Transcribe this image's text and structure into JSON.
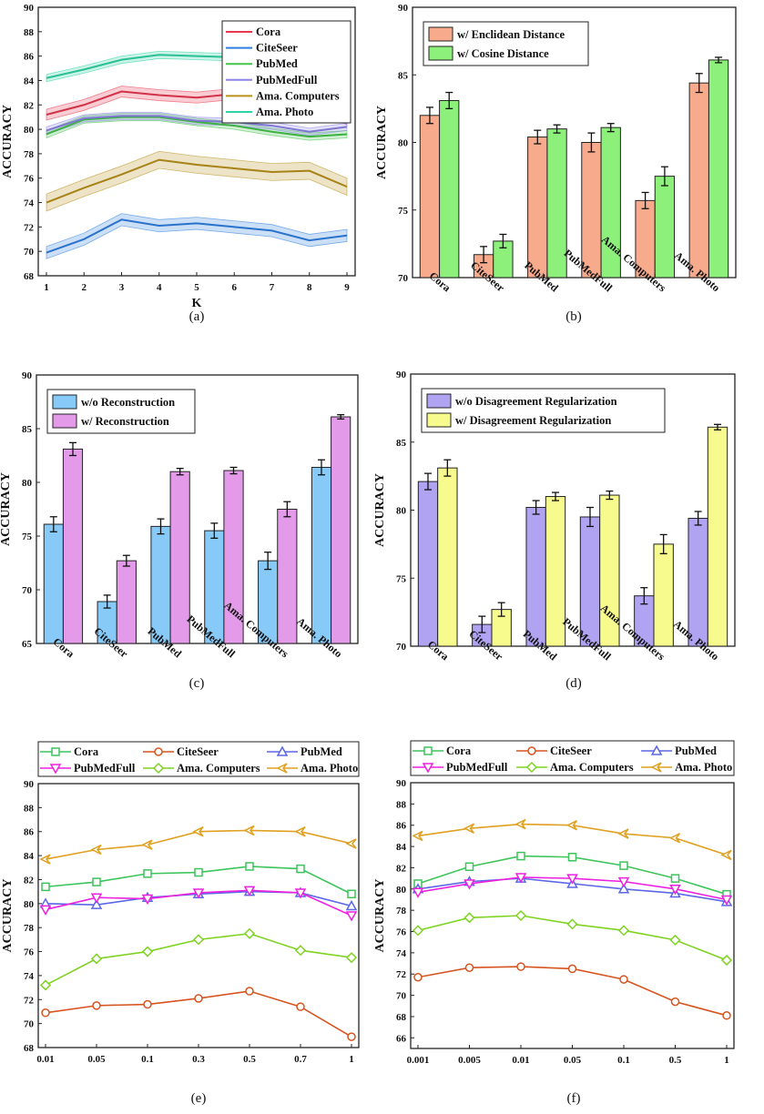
{
  "chart_data": [
    {
      "id": "a",
      "caption": "(a)",
      "type": "line",
      "xlabel": "K",
      "ylabel": "ACCURACY",
      "x": [
        1,
        2,
        3,
        4,
        5,
        6,
        7,
        8,
        9
      ],
      "xticks": [
        "1",
        "2",
        "3",
        "4",
        "5",
        "6",
        "7",
        "8",
        "9"
      ],
      "ylim": [
        68,
        90
      ],
      "yticks": [
        "68",
        "70",
        "72",
        "74",
        "76",
        "78",
        "80",
        "82",
        "84",
        "86",
        "88",
        "90"
      ],
      "legend_position": "top-right",
      "series": [
        {
          "name": "Cora",
          "color": "#e8384f",
          "values": [
            81.2,
            82.0,
            83.1,
            82.8,
            82.6,
            82.9,
            82.8,
            82.4,
            80.8
          ],
          "band": 0.45
        },
        {
          "name": "CiteSeer",
          "color": "#2f7fe0",
          "values": [
            69.9,
            71.0,
            72.6,
            72.1,
            72.3,
            72.0,
            71.7,
            70.9,
            71.3
          ],
          "band": 0.5
        },
        {
          "name": "PubMed",
          "color": "#44c34a",
          "values": [
            79.6,
            80.8,
            81.0,
            81.0,
            80.6,
            80.3,
            79.8,
            79.4,
            79.6
          ],
          "band": 0.3
        },
        {
          "name": "PubMedFull",
          "color": "#8c83e8",
          "values": [
            79.9,
            80.9,
            81.1,
            81.1,
            80.7,
            80.6,
            80.3,
            79.8,
            80.2
          ],
          "band": 0.3
        },
        {
          "name": "Ama. Computers",
          "color": "#b8901a",
          "values": [
            74.0,
            75.2,
            76.3,
            77.5,
            77.1,
            76.8,
            76.5,
            76.6,
            75.3
          ],
          "band": 0.7
        },
        {
          "name": "Ama. Photo",
          "color": "#2fd4a4",
          "values": [
            84.2,
            84.9,
            85.7,
            86.1,
            86.0,
            85.9,
            85.8,
            85.6,
            85.5
          ],
          "band": 0.3
        }
      ]
    },
    {
      "id": "b",
      "caption": "(b)",
      "type": "bar",
      "ylabel": "ACCURACY",
      "categories": [
        "Cora",
        "CiteSeer",
        "PubMed",
        "PubMedFull",
        "Ama. Computers",
        "Ama. Photo"
      ],
      "ylim": [
        70,
        90
      ],
      "yticks": [
        "70",
        "75",
        "80",
        "85",
        "90"
      ],
      "legend_position": "top-left",
      "series": [
        {
          "name": "w/ Enclidean Distance",
          "color": "#f7aa8c",
          "values": [
            82.0,
            71.7,
            80.4,
            80.0,
            75.7,
            84.4
          ],
          "errors": [
            0.6,
            0.6,
            0.5,
            0.7,
            0.6,
            0.7
          ]
        },
        {
          "name": "w/ Cosine Distance",
          "color": "#8cf07a",
          "values": [
            83.1,
            72.7,
            81.0,
            81.1,
            77.5,
            86.1
          ],
          "errors": [
            0.6,
            0.5,
            0.3,
            0.3,
            0.7,
            0.2
          ]
        }
      ]
    },
    {
      "id": "c",
      "caption": "(c)",
      "type": "bar",
      "ylabel": "ACCURACY",
      "categories": [
        "Cora",
        "CiteSeer",
        "PubMed",
        "PubMedFull",
        "Ama. Computers",
        "Ama. Photo"
      ],
      "ylim": [
        65,
        90
      ],
      "yticks": [
        "65",
        "70",
        "75",
        "80",
        "85",
        "90"
      ],
      "legend_position": "top-left",
      "series": [
        {
          "name": "w/o Reconstruction",
          "color": "#87c9f7",
          "values": [
            76.1,
            68.9,
            75.9,
            75.5,
            72.7,
            81.4
          ],
          "errors": [
            0.7,
            0.6,
            0.7,
            0.7,
            0.8,
            0.7
          ]
        },
        {
          "name": "w/ Reconstruction",
          "color": "#e29ae9",
          "values": [
            83.1,
            72.7,
            81.0,
            81.1,
            77.5,
            86.1
          ],
          "errors": [
            0.6,
            0.5,
            0.3,
            0.3,
            0.7,
            0.2
          ]
        }
      ]
    },
    {
      "id": "d",
      "caption": "(d)",
      "type": "bar",
      "ylabel": "ACCURACY",
      "categories": [
        "Cora",
        "CiteSeer",
        "PubMed",
        "PubMedFull",
        "Ama. Computers",
        "Ama. Photo"
      ],
      "ylim": [
        70,
        90
      ],
      "yticks": [
        "70",
        "75",
        "80",
        "85",
        "90"
      ],
      "legend_position": "top-left",
      "series": [
        {
          "name": "w/o Disagreement Regularization",
          "color": "#b0a3f2",
          "values": [
            82.1,
            71.6,
            80.2,
            79.5,
            73.7,
            79.4
          ],
          "errors": [
            0.6,
            0.6,
            0.5,
            0.7,
            0.6,
            0.5
          ]
        },
        {
          "name": "w/ Disagreement Regularization",
          "color": "#f7fa8c",
          "values": [
            83.1,
            72.7,
            81.0,
            81.1,
            77.5,
            86.1
          ],
          "errors": [
            0.6,
            0.5,
            0.3,
            0.3,
            0.7,
            0.2
          ]
        }
      ]
    },
    {
      "id": "e",
      "caption": "(e)",
      "type": "line",
      "ylabel": "ACCURACY",
      "xticks": [
        "0.01",
        "0.05",
        "0.1",
        "0.3",
        "0.5",
        "0.7",
        "1"
      ],
      "ylim": [
        68,
        90
      ],
      "yticks": [
        "68",
        "70",
        "72",
        "74",
        "76",
        "78",
        "80",
        "82",
        "84",
        "86",
        "88",
        "90"
      ],
      "legend_position": "top",
      "series": [
        {
          "name": "Cora",
          "color": "#3dc45a",
          "marker": "square",
          "values": [
            81.4,
            81.8,
            82.5,
            82.6,
            83.1,
            82.9,
            80.8
          ]
        },
        {
          "name": "CiteSeer",
          "color": "#d6541e",
          "marker": "circle",
          "values": [
            70.9,
            71.5,
            71.6,
            72.1,
            72.7,
            71.4,
            68.9
          ]
        },
        {
          "name": "PubMed",
          "color": "#5b67e6",
          "marker": "triangle-up",
          "values": [
            80.0,
            79.9,
            80.5,
            80.8,
            81.0,
            80.9,
            79.8
          ]
        },
        {
          "name": "PubMedFull",
          "color": "#ee20e0",
          "marker": "triangle-down",
          "values": [
            79.5,
            80.5,
            80.4,
            80.9,
            81.1,
            80.9,
            79.0
          ]
        },
        {
          "name": "Ama. Computers",
          "color": "#7ed321",
          "marker": "diamond",
          "values": [
            73.2,
            75.4,
            76.0,
            77.0,
            77.5,
            76.1,
            75.5
          ]
        },
        {
          "name": "Ama. Photo",
          "color": "#e0a020",
          "marker": "chevron-left",
          "values": [
            83.7,
            84.5,
            84.9,
            86.0,
            86.1,
            86.0,
            85.0
          ]
        }
      ]
    },
    {
      "id": "f",
      "caption": "(f)",
      "type": "line",
      "ylabel": "ACCURACY",
      "xticks": [
        "0.001",
        "0.005",
        "0.01",
        "0.05",
        "0.1",
        "0.5",
        "1"
      ],
      "ylim": [
        65,
        90
      ],
      "yticks": [
        "66",
        "68",
        "70",
        "72",
        "74",
        "76",
        "78",
        "80",
        "82",
        "84",
        "86",
        "88",
        "90"
      ],
      "legend_position": "top",
      "series": [
        {
          "name": "Cora",
          "color": "#3dc45a",
          "marker": "square",
          "values": [
            80.5,
            82.1,
            83.1,
            83.0,
            82.2,
            81.0,
            79.5
          ]
        },
        {
          "name": "CiteSeer",
          "color": "#d6541e",
          "marker": "circle",
          "values": [
            71.7,
            72.6,
            72.7,
            72.5,
            71.5,
            69.4,
            68.1
          ]
        },
        {
          "name": "PubMed",
          "color": "#5b67e6",
          "marker": "triangle-up",
          "values": [
            80.0,
            80.7,
            81.0,
            80.5,
            80.0,
            79.6,
            78.8
          ]
        },
        {
          "name": "PubMedFull",
          "color": "#ee20e0",
          "marker": "triangle-down",
          "values": [
            79.7,
            80.5,
            81.1,
            81.0,
            80.7,
            80.0,
            79.0
          ]
        },
        {
          "name": "Ama. Computers",
          "color": "#7ed321",
          "marker": "diamond",
          "values": [
            76.1,
            77.3,
            77.5,
            76.7,
            76.1,
            75.2,
            73.3
          ]
        },
        {
          "name": "Ama. Photo",
          "color": "#e0a020",
          "marker": "chevron-left",
          "values": [
            85.0,
            85.7,
            86.1,
            86.0,
            85.2,
            84.8,
            83.2
          ]
        }
      ]
    }
  ]
}
